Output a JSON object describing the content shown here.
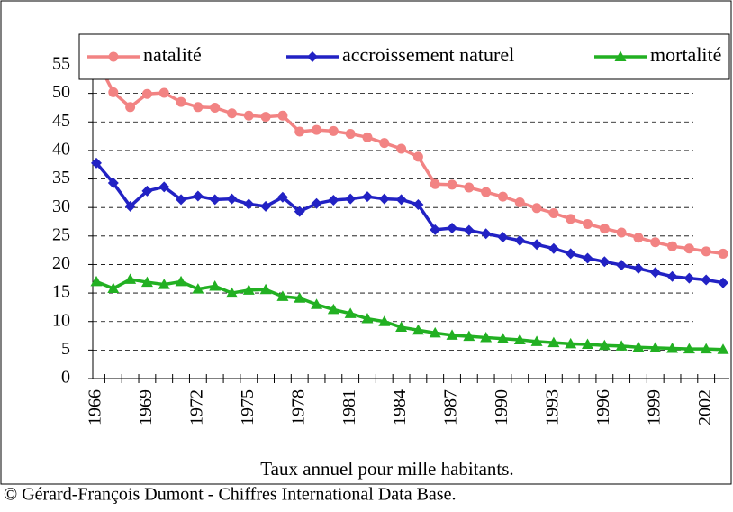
{
  "chart_data": {
    "type": "line",
    "xlabel": "Taux annuel pour mille habitants.",
    "source": "© Gérard-François Dumont - Chiffres International Data Base.",
    "categories": [
      "1966",
      null,
      null,
      "1969",
      null,
      null,
      "1972",
      null,
      null,
      "1975",
      null,
      null,
      "1978",
      null,
      null,
      "1981",
      null,
      null,
      "1984",
      null,
      null,
      "1987",
      null,
      null,
      "1990",
      null,
      null,
      "1993",
      null,
      null,
      "1996",
      null,
      null,
      "1999",
      null,
      null,
      "2002",
      null
    ],
    "series": [
      {
        "name": "natalité",
        "color": "#f28383",
        "marker": "circle",
        "values": [
          56,
          50.2,
          47.6,
          49.9,
          50.1,
          48.5,
          47.6,
          47.5,
          46.5,
          46.1,
          45.9,
          46.1,
          43.3,
          43.6,
          43.4,
          42.9,
          42.3,
          41.3,
          40.3,
          38.9,
          34.1,
          34.0,
          33.5,
          32.7,
          31.9,
          30.9,
          29.9,
          29.0,
          28.0,
          27.1,
          26.3,
          25.6,
          24.7,
          23.9,
          23.2,
          22.8,
          22.3,
          21.9
        ]
      },
      {
        "name": "accroissement naturel",
        "color": "#2222c4",
        "marker": "diamond",
        "values": [
          37.8,
          34.3,
          30.2,
          32.9,
          33.6,
          31.4,
          32.0,
          31.4,
          31.5,
          30.6,
          30.2,
          31.8,
          29.3,
          30.7,
          31.3,
          31.5,
          31.9,
          31.5,
          31.4,
          30.5,
          26.1,
          26.4,
          26.0,
          25.4,
          24.8,
          24.2,
          23.5,
          22.8,
          21.9,
          21.1,
          20.5,
          19.9,
          19.3,
          18.6,
          17.9,
          17.6,
          17.3,
          16.8
        ]
      },
      {
        "name": "mortalité",
        "color": "#22b022",
        "marker": "triangle",
        "values": [
          17.0,
          15.8,
          17.4,
          16.9,
          16.5,
          17.0,
          15.7,
          16.2,
          15.0,
          15.5,
          15.6,
          14.4,
          14.1,
          13.0,
          12.1,
          11.4,
          10.5,
          10.0,
          9.0,
          8.5,
          8.0,
          7.6,
          7.4,
          7.2,
          7.0,
          6.8,
          6.5,
          6.3,
          6.1,
          6.0,
          5.8,
          5.7,
          5.5,
          5.4,
          5.3,
          5.2,
          5.2,
          5.1
        ]
      }
    ],
    "ylim": [
      0,
      58
    ],
    "yticks": [
      0,
      5,
      10,
      15,
      20,
      25,
      30,
      35,
      40,
      45,
      50,
      55
    ],
    "grid": true,
    "legend": "top"
  }
}
